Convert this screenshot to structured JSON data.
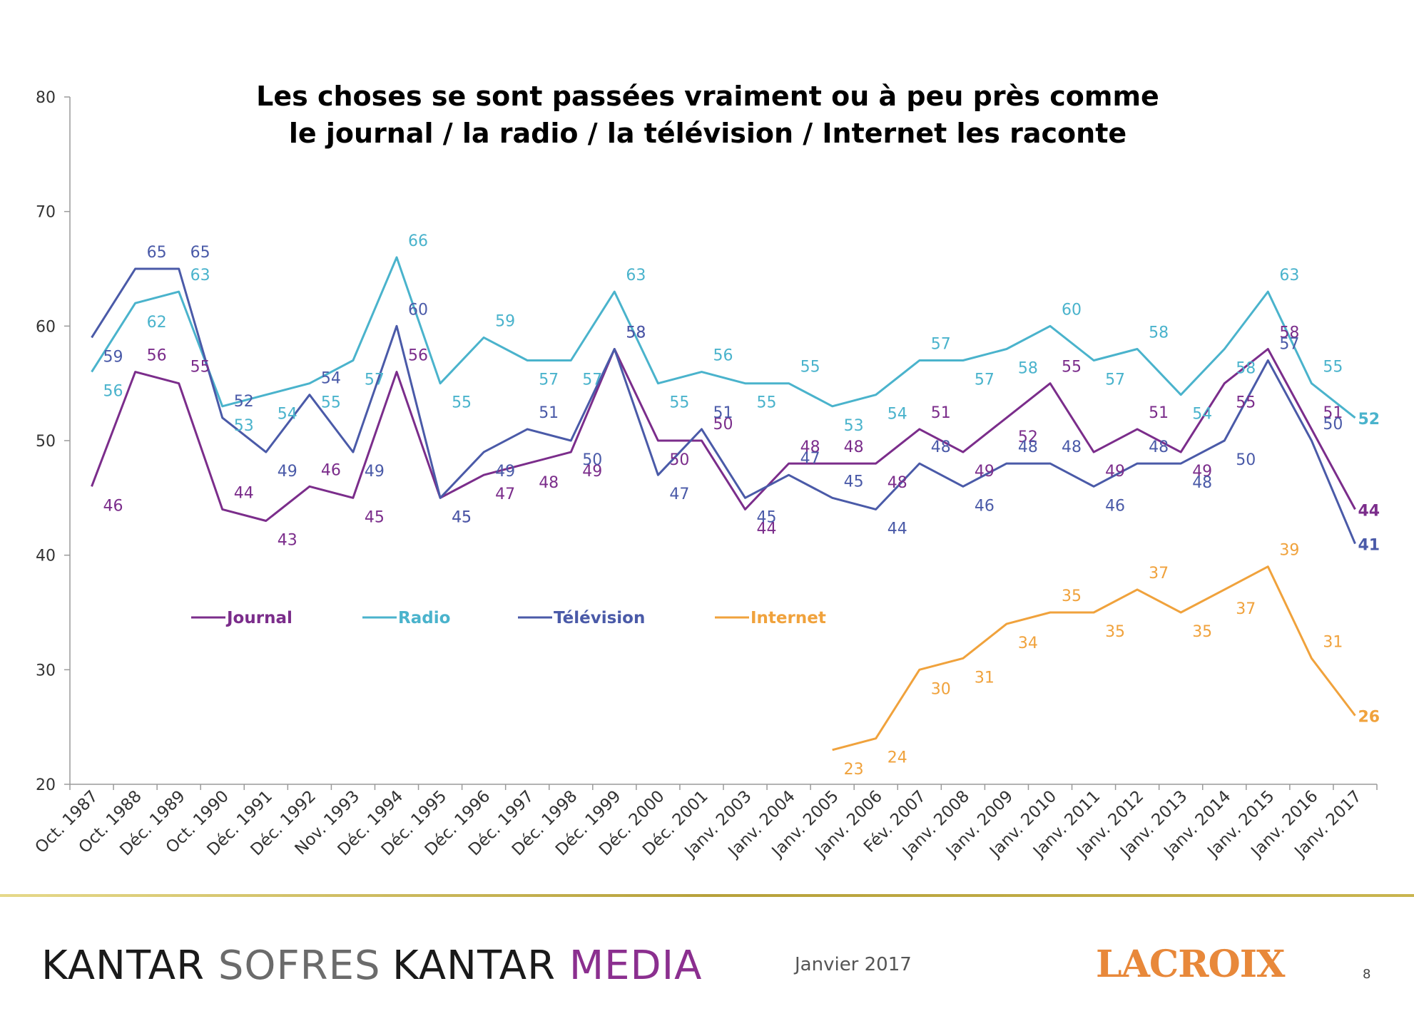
{
  "chart_data": {
    "type": "line",
    "title": "Les choses se sont passées vraiment ou à peu près comme\nle journal / la radio / la télévision / Internet les raconte",
    "xlabel": "",
    "ylabel": "",
    "ylim": [
      20,
      80
    ],
    "yticks": [
      20,
      30,
      40,
      50,
      60,
      70,
      80
    ],
    "grid": false,
    "legend_position": "center-left",
    "categories": [
      "Oct. 1987",
      "Oct. 1988",
      "Déc. 1989",
      "Oct. 1990",
      "Déc. 1991",
      "Déc. 1992",
      "Nov. 1993",
      "Déc. 1994",
      "Déc. 1995",
      "Déc. 1996",
      "Déc. 1997",
      "Déc. 1998",
      "Déc. 1999",
      "Déc. 2000",
      "Déc. 2001",
      "Janv. 2003",
      "Janv. 2004",
      "Janv. 2005",
      "Janv. 2006",
      "Fév. 2007",
      "Janv. 2008",
      "Janv. 2009",
      "Janv. 2010",
      "Janv. 2011",
      "Janv. 2012",
      "Janv. 2013",
      "Janv. 2014",
      "Janv. 2015",
      "Janv. 2016",
      "Janv. 2017"
    ],
    "series": [
      {
        "name": "Journal",
        "color": "#7b2d8b",
        "values": [
          46,
          56,
          55,
          44,
          43,
          46,
          45,
          56,
          45,
          47,
          48,
          49,
          58,
          50,
          50,
          44,
          48,
          48,
          48,
          51,
          49,
          52,
          55,
          49,
          51,
          49,
          55,
          58,
          51,
          44
        ]
      },
      {
        "name": "Radio",
        "color": "#4ab3cc",
        "values": [
          56,
          62,
          63,
          53,
          54,
          55,
          57,
          66,
          55,
          59,
          57,
          57,
          63,
          55,
          56,
          55,
          55,
          53,
          54,
          57,
          57,
          58,
          60,
          57,
          58,
          54,
          58,
          63,
          55,
          52
        ]
      },
      {
        "name": "Télévision",
        "color": "#4a5aa8",
        "values": [
          59,
          65,
          65,
          52,
          49,
          54,
          49,
          60,
          45,
          49,
          51,
          50,
          58,
          47,
          51,
          45,
          47,
          45,
          44,
          48,
          46,
          48,
          48,
          46,
          48,
          48,
          50,
          57,
          50,
          41
        ]
      },
      {
        "name": "Internet",
        "color": "#f0a23c",
        "values": [
          null,
          null,
          null,
          null,
          null,
          null,
          null,
          null,
          null,
          null,
          null,
          null,
          null,
          null,
          null,
          null,
          null,
          23,
          24,
          30,
          31,
          34,
          35,
          35,
          37,
          35,
          37,
          39,
          31,
          26
        ]
      }
    ]
  },
  "footer": {
    "logo_kantar_sofres_1": "KANTAR",
    "logo_kantar_sofres_2": " SOFRES",
    "logo_kantar_media_1": "KANTAR",
    "logo_kantar_media_2": " MEDIA",
    "date": "Janvier 2017",
    "logo_la_croix": "LACROIX",
    "page_number": "8"
  }
}
